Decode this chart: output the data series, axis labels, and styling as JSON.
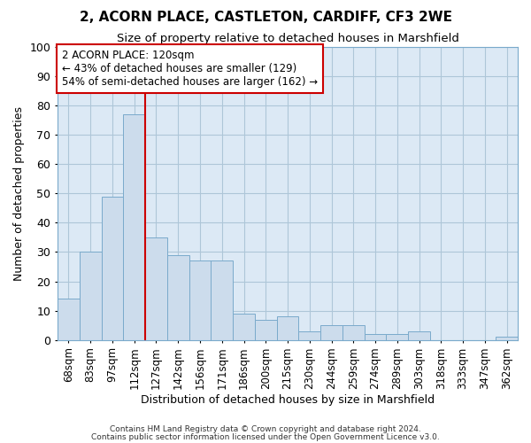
{
  "title": "2, ACORN PLACE, CASTLETON, CARDIFF, CF3 2WE",
  "subtitle": "Size of property relative to detached houses in Marshfield",
  "xlabel": "Distribution of detached houses by size in Marshfield",
  "ylabel": "Number of detached properties",
  "categories": [
    "68sqm",
    "83sqm",
    "97sqm",
    "112sqm",
    "127sqm",
    "142sqm",
    "156sqm",
    "171sqm",
    "186sqm",
    "200sqm",
    "215sqm",
    "230sqm",
    "244sqm",
    "259sqm",
    "274sqm",
    "289sqm",
    "303sqm",
    "318sqm",
    "333sqm",
    "347sqm",
    "362sqm"
  ],
  "values": [
    14,
    30,
    49,
    77,
    35,
    29,
    27,
    27,
    9,
    7,
    8,
    3,
    5,
    5,
    2,
    2,
    3,
    0,
    0,
    0,
    1
  ],
  "bar_color": "#ccdcec",
  "bar_edge_color": "#7aaacb",
  "vline_x_index": 3.5,
  "vline_color": "#cc0000",
  "annotation_line1": "2 ACORN PLACE: 120sqm",
  "annotation_line2": "← 43% of detached houses are smaller (129)",
  "annotation_line3": "54% of semi-detached houses are larger (162) →",
  "annotation_box_color": "#ffffff",
  "annotation_box_edge_color": "#cc0000",
  "ylim": [
    0,
    100
  ],
  "yticks": [
    0,
    10,
    20,
    30,
    40,
    50,
    60,
    70,
    80,
    90,
    100
  ],
  "grid_color": "#aec6d8",
  "background_color": "#ffffff",
  "plot_bg_color": "#dce9f5",
  "footer_line1": "Contains HM Land Registry data © Crown copyright and database right 2024.",
  "footer_line2": "Contains public sector information licensed under the Open Government Licence v3.0."
}
